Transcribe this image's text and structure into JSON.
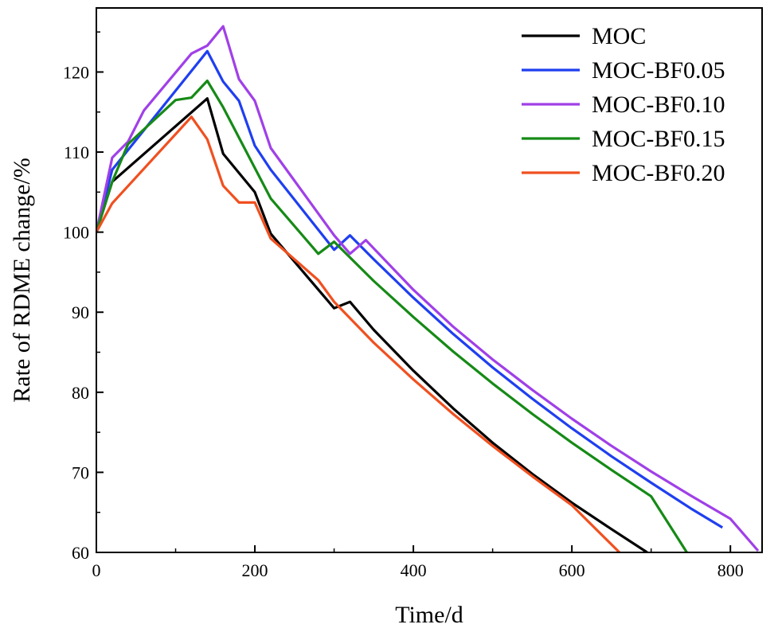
{
  "chart_data": {
    "type": "line",
    "title": "",
    "xlabel": "Time/d",
    "ylabel": "Rate of RDME change/%",
    "xlim": [
      0,
      840
    ],
    "ylim": [
      60,
      128
    ],
    "xticks": [
      0,
      200,
      400,
      600,
      800
    ],
    "yticks": [
      60,
      70,
      80,
      90,
      100,
      110,
      120
    ],
    "grid": false,
    "legend_position": "top-right",
    "series": [
      {
        "name": "MOC",
        "color": "#000000",
        "x": [
          0,
          20,
          140,
          160,
          200,
          220,
          300,
          320,
          350,
          400,
          450,
          500,
          550,
          600,
          650,
          695
        ],
        "y": [
          100,
          106.3,
          116.7,
          109.8,
          105,
          99.8,
          90.5,
          91.3,
          87.8,
          82.7,
          78,
          73.7,
          69.8,
          66.2,
          62.9,
          60
        ]
      },
      {
        "name": "MOC-BF0.05",
        "color": "#1f3ff0",
        "x": [
          0,
          20,
          140,
          160,
          180,
          200,
          220,
          300,
          320,
          350,
          400,
          450,
          500,
          550,
          600,
          650,
          700,
          750,
          790
        ],
        "y": [
          100,
          107.8,
          122.6,
          118.8,
          116.4,
          110.8,
          107.8,
          97.8,
          99.6,
          96.6,
          91.8,
          87.3,
          83.1,
          79.2,
          75.5,
          72,
          68.7,
          65.5,
          63.1
        ]
      },
      {
        "name": "MOC-BF0.10",
        "color": "#a040e8",
        "x": [
          0,
          20,
          40,
          60,
          120,
          140,
          160,
          180,
          200,
          220,
          300,
          320,
          340,
          400,
          450,
          500,
          550,
          600,
          650,
          700,
          750,
          800,
          835
        ],
        "y": [
          100,
          109.3,
          111.3,
          115.2,
          122.3,
          123.3,
          125.7,
          119.1,
          116.4,
          110.5,
          99.6,
          97.3,
          99,
          92.8,
          88.2,
          84.1,
          80.3,
          76.7,
          73.3,
          70.1,
          67.1,
          64.2,
          60.2
        ]
      },
      {
        "name": "MOC-BF0.15",
        "color": "#168a16",
        "x": [
          0,
          20,
          40,
          100,
          120,
          140,
          160,
          220,
          280,
          300,
          350,
          400,
          450,
          500,
          550,
          600,
          650,
          700,
          745
        ],
        "y": [
          100,
          106.3,
          111,
          116.5,
          116.8,
          118.9,
          115.6,
          104.2,
          97.3,
          98.8,
          93.9,
          89.4,
          85.1,
          81.1,
          77.3,
          73.7,
          70.3,
          67,
          60
        ]
      },
      {
        "name": "MOC-BF0.20",
        "color": "#f05020",
        "x": [
          0,
          20,
          120,
          140,
          160,
          180,
          200,
          220,
          280,
          300,
          350,
          400,
          450,
          500,
          550,
          600,
          660
        ],
        "y": [
          100,
          103.6,
          114.4,
          111.6,
          105.8,
          103.7,
          103.7,
          99.2,
          94,
          91.3,
          86.2,
          81.6,
          77.3,
          73.3,
          69.5,
          65.9,
          60
        ]
      }
    ]
  }
}
